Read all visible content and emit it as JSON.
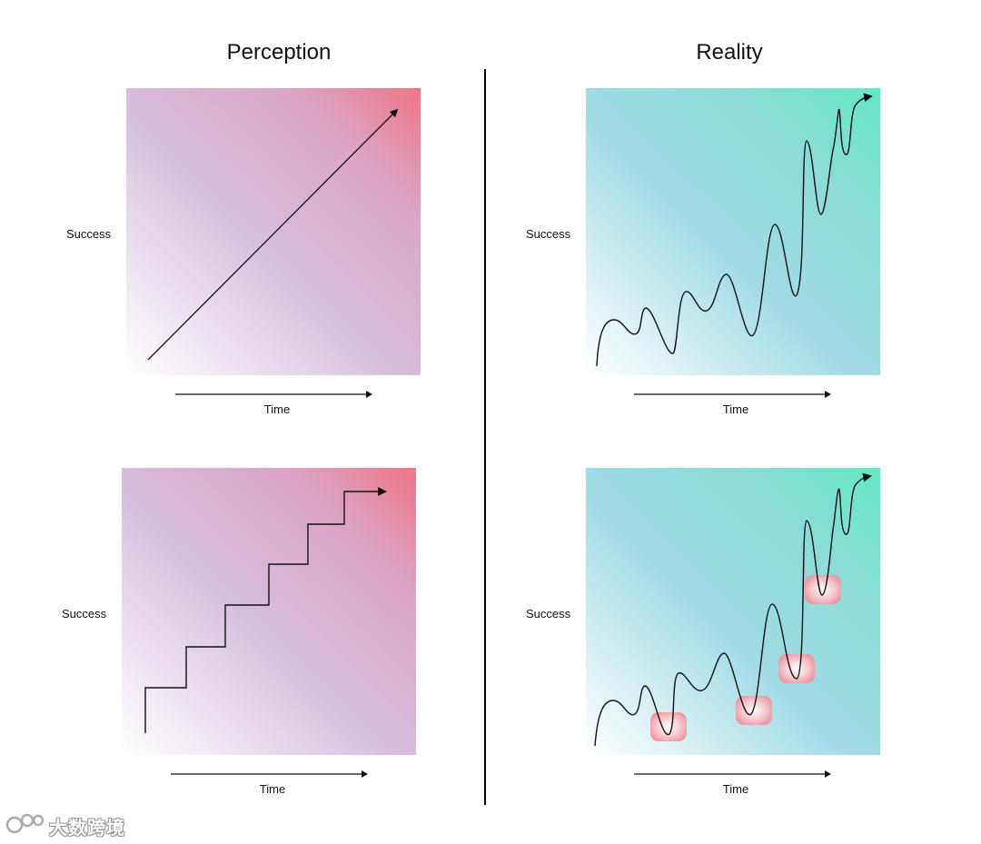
{
  "headings": {
    "left": "Perception",
    "right": "Reality"
  },
  "panels": {
    "perception_linear": {
      "y_label": "Success",
      "x_label": "Time"
    },
    "perception_steps": {
      "y_label": "Success",
      "x_label": "Time"
    },
    "reality_wavy": {
      "y_label": "Success",
      "x_label": "Time"
    },
    "reality_setbacks": {
      "y_label": "Success",
      "x_label": "Time"
    }
  },
  "colors": {
    "perception_start": "#ffffff",
    "perception_mid": "#d8bfe0",
    "perception_end": "#f07585",
    "reality_start": "#ffffff",
    "reality_mid": "#a2dbe6",
    "reality_end": "#63e8c4",
    "setback_highlight": "#f08a95",
    "line": "#111111"
  },
  "watermark": {
    "text": "大数跨境",
    "icon": "logo-icon"
  }
}
